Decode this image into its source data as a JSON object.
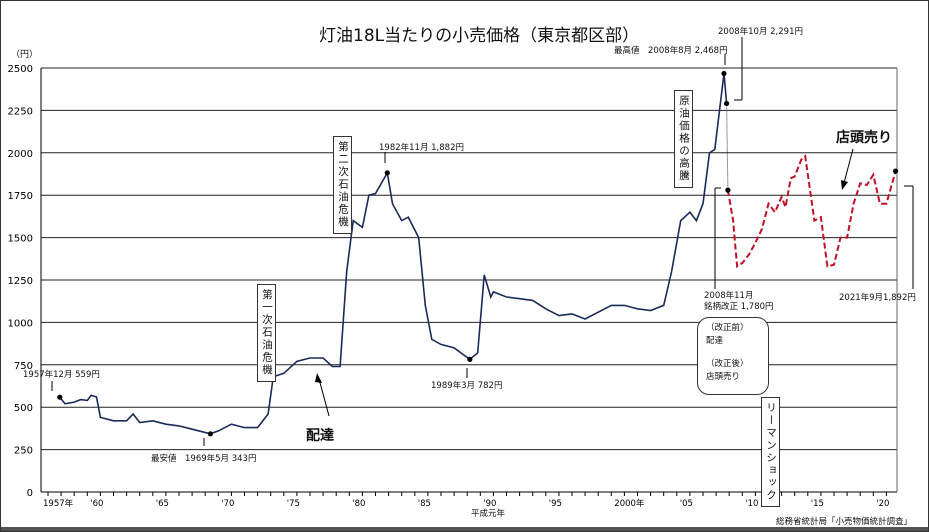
{
  "chart_data": {
    "type": "line",
    "title": "灯油18L当たりの小売価格（東京都区部）",
    "ylabel": "（円）",
    "ylim": [
      0,
      2500
    ],
    "xlim": [
      1957,
      2022
    ],
    "grid": true,
    "y_ticks": [
      0,
      250,
      500,
      750,
      1000,
      1250,
      1500,
      1750,
      2000,
      2250,
      2500
    ],
    "x_ticks": [
      {
        "year": 1957,
        "label": "1957年"
      },
      {
        "year": 1960,
        "label": "'60"
      },
      {
        "year": 1965,
        "label": "'65"
      },
      {
        "year": 1970,
        "label": "'70"
      },
      {
        "year": 1975,
        "label": "'75"
      },
      {
        "year": 1980,
        "label": "'80"
      },
      {
        "year": 1985,
        "label": "'85"
      },
      {
        "year": 1990,
        "label": "'90"
      },
      {
        "year": 1995,
        "label": "'95"
      },
      {
        "year": 2000,
        "label": "2000年"
      },
      {
        "year": 2005,
        "label": "'05"
      },
      {
        "year": 2010,
        "label": "'10"
      },
      {
        "year": 2015,
        "label": "'15"
      },
      {
        "year": 2020,
        "label": "'20"
      }
    ],
    "x_sublabel": "平成元年",
    "series": [
      {
        "name": "配達",
        "color": "#1a2a5a",
        "style": "solid",
        "x": [
          1957.9,
          1958.3,
          1959,
          1959.5,
          1960,
          1960.3,
          1960.7,
          1961,
          1962,
          1963,
          1963.5,
          1964,
          1965,
          1966,
          1967,
          1968,
          1969.4,
          1970,
          1971,
          1972,
          1973,
          1973.8,
          1974.2,
          1975,
          1976,
          1977,
          1978,
          1978.7,
          1979.3,
          1979.8,
          1980.3,
          1981,
          1981.5,
          1982,
          1982.9,
          1983.3,
          1984,
          1984.5,
          1985.3,
          1985.8,
          1986.3,
          1987,
          1988,
          1989.2,
          1989.8,
          1990.3,
          1990.8,
          1991,
          1992,
          1993,
          1994,
          1995,
          1996,
          1997,
          1998,
          1999,
          2000,
          2001,
          2002,
          2003,
          2004,
          2004.6,
          2005.3,
          2006,
          2006.5,
          2007,
          2007.5,
          2007.9,
          2008.6,
          2008.8
        ],
        "y": [
          559,
          520,
          530,
          545,
          540,
          570,
          560,
          440,
          420,
          420,
          460,
          410,
          420,
          400,
          390,
          370,
          343,
          360,
          400,
          380,
          380,
          460,
          680,
          700,
          770,
          790,
          790,
          740,
          740,
          1300,
          1600,
          1560,
          1750,
          1760,
          1882,
          1700,
          1600,
          1620,
          1500,
          1100,
          900,
          870,
          850,
          782,
          820,
          1280,
          1150,
          1180,
          1150,
          1140,
          1130,
          1080,
          1040,
          1050,
          1020,
          1060,
          1100,
          1100,
          1080,
          1070,
          1100,
          1300,
          1600,
          1650,
          1600,
          1700,
          2000,
          2020,
          2468,
          2291
        ]
      },
      {
        "name": "店頭売り",
        "color": "#c0102a",
        "style": "dashed",
        "x": [
          2008.9,
          2009.3,
          2009.6,
          2010,
          2010.5,
          2011,
          2011.5,
          2012,
          2012.5,
          2013,
          2013.3,
          2013.7,
          2014,
          2014.5,
          2014.8,
          2015.5,
          2016,
          2016.5,
          2017,
          2017.5,
          2018,
          2018.5,
          2019,
          2019.5,
          2020,
          2020.5,
          2021,
          2021.7
        ],
        "y": [
          1780,
          1600,
          1330,
          1350,
          1400,
          1470,
          1550,
          1700,
          1650,
          1740,
          1680,
          1850,
          1860,
          1960,
          1980,
          1600,
          1620,
          1330,
          1340,
          1500,
          1500,
          1700,
          1820,
          1810,
          1870,
          1700,
          1700,
          1892
        ]
      }
    ],
    "annotations": {
      "start": "1957年12月 559円",
      "min": "最安値　1969年5月 343円",
      "peak1982": "1982年11月 1,882円",
      "low1989": "1989年3月 782円",
      "max": "最高値　2008年8月 2,468円",
      "oct2008": "2008年10月 2,291円",
      "nov2008_a": "2008年11月",
      "nov2008_b": "銘柄改正 1,780円",
      "latest": "2021年9月1,892円",
      "oil1": "第一次石油危機",
      "oil2": "第二次石油危機",
      "crude": "原油価格の高騰",
      "lehman": "リーマンショック",
      "delivery": "配達",
      "store": "店頭売り",
      "note_before": "（改正前）",
      "note_before_val": "配達",
      "note_after": "（改正後）",
      "note_after_val": "店頭売り"
    },
    "source": "総務省統計局「小売物価統計調査」"
  }
}
